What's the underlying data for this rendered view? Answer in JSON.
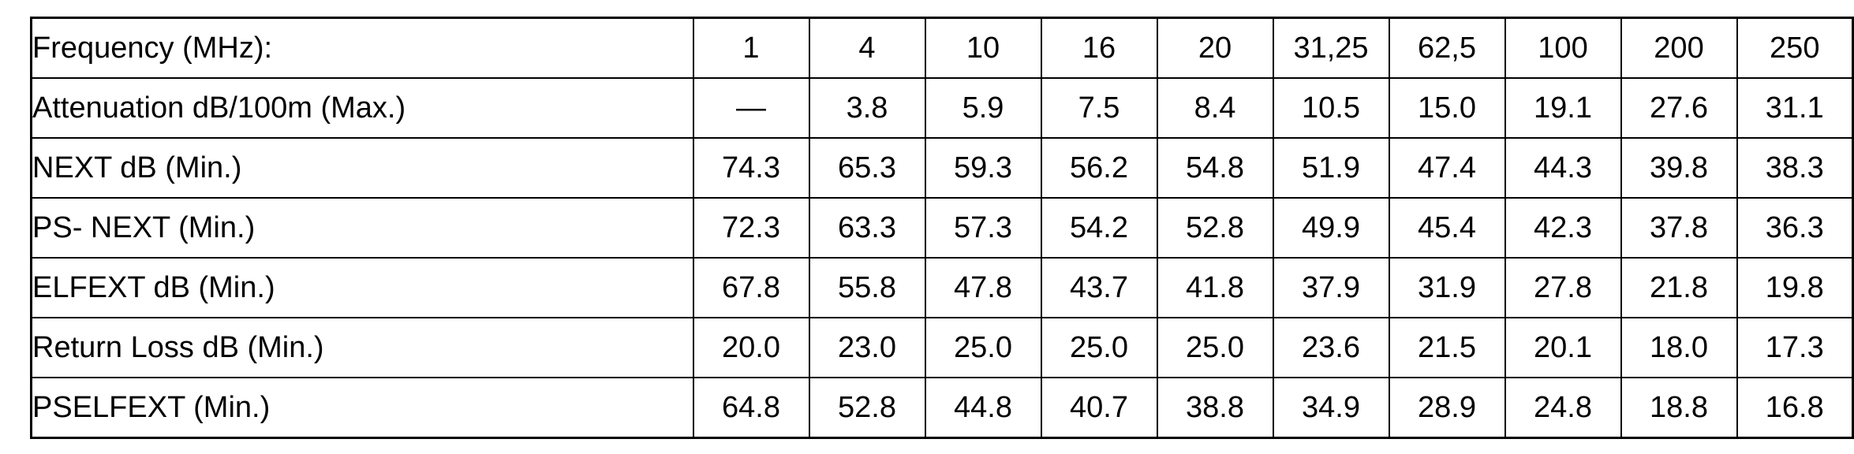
{
  "colors": {
    "border": "#000000",
    "text": "#000000",
    "background": "#ffffff"
  },
  "table": {
    "description": "cable-specification-table",
    "rows": [
      {
        "label": "Frequency (MHz):",
        "values": [
          "1",
          "4",
          "10",
          "16",
          "20",
          "31,25",
          "62,5",
          "100",
          "200",
          "250"
        ]
      },
      {
        "label": "Attenuation dB/100m (Max.)",
        "values": [
          "—",
          "3.8",
          "5.9",
          "7.5",
          "8.4",
          "10.5",
          "15.0",
          "19.1",
          "27.6",
          "31.1"
        ]
      },
      {
        "label": "NEXT dB (Min.)",
        "values": [
          "74.3",
          "65.3",
          "59.3",
          "56.2",
          "54.8",
          "51.9",
          "47.4",
          "44.3",
          "39.8",
          "38.3"
        ]
      },
      {
        "label": "PS- NEXT (Min.)",
        "values": [
          "72.3",
          "63.3",
          "57.3",
          "54.2",
          "52.8",
          "49.9",
          "45.4",
          "42.3",
          "37.8",
          "36.3"
        ]
      },
      {
        "label": "ELFEXT dB (Min.)",
        "values": [
          "67.8",
          "55.8",
          "47.8",
          "43.7",
          "41.8",
          "37.9",
          "31.9",
          "27.8",
          "21.8",
          "19.8"
        ]
      },
      {
        "label": "Return Loss dB (Min.)",
        "values": [
          "20.0",
          "23.0",
          "25.0",
          "25.0",
          "25.0",
          "23.6",
          "21.5",
          "20.1",
          "18.0",
          "17.3"
        ]
      },
      {
        "label": "PSELFEXT (Min.)",
        "values": [
          "64.8",
          "52.8",
          "44.8",
          "40.7",
          "38.8",
          "34.9",
          "28.9",
          "24.8",
          "18.8",
          "16.8"
        ]
      }
    ]
  }
}
